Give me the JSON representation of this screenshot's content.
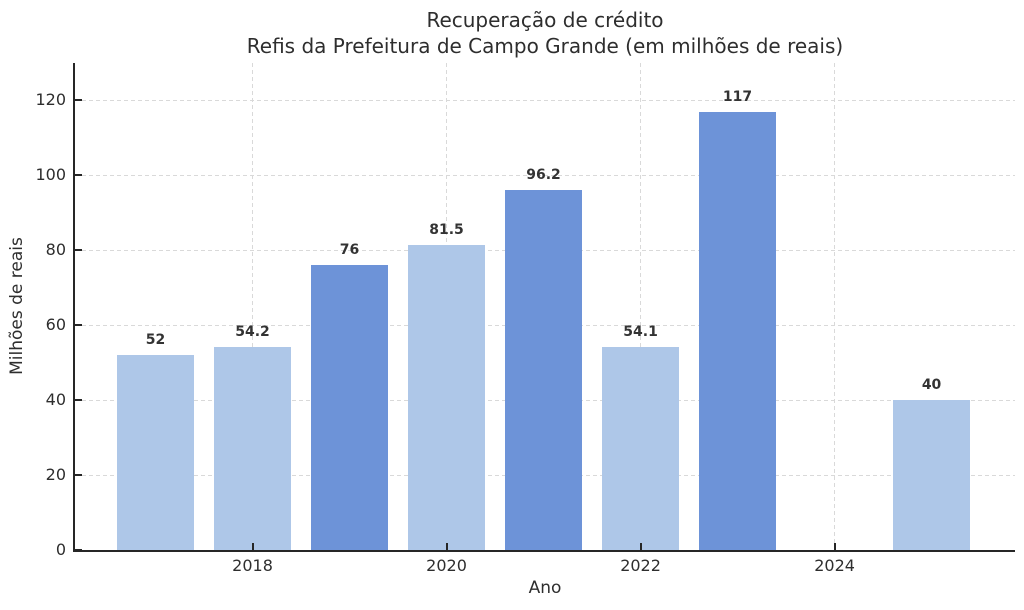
{
  "chart": {
    "title_line1": "Recuperação de crédito",
    "title_line2": "Refis da Prefeitura de Campo Grande (em milhões de reais)",
    "xlabel": "Ano",
    "ylabel": "Milhões de reais"
  },
  "chart_data": {
    "type": "bar",
    "title": "Recuperação de crédito",
    "subtitle": "Refis da Prefeitura de Campo Grande (em milhões de reais)",
    "xlabel": "Ano",
    "ylabel": "Milhões de reais",
    "x": [
      2017,
      2018,
      2019,
      2020,
      2021,
      2022,
      2023,
      2025
    ],
    "values": [
      52,
      54.2,
      76,
      81.5,
      96.2,
      54.1,
      117,
      40
    ],
    "value_labels": [
      "52",
      "54.2",
      "76",
      "81.5",
      "96.2",
      "54.1",
      "117",
      "40"
    ],
    "bar_color_keys": [
      "light",
      "light",
      "dark",
      "light",
      "dark",
      "light",
      "dark",
      "light"
    ],
    "colors": {
      "light": "#aec7e8",
      "dark": "#6d93d8"
    },
    "grid_color": "#d9d9d9",
    "axis_color": "#262626",
    "bar_width": 0.8,
    "xlim": [
      2016.17,
      2025.86
    ],
    "ylim": [
      0,
      130
    ],
    "yticks": [
      0,
      20,
      40,
      60,
      80,
      100,
      120
    ],
    "xticks": [
      2018,
      2020,
      2022,
      2024
    ],
    "grid": "both-dashed",
    "legend": "none"
  }
}
